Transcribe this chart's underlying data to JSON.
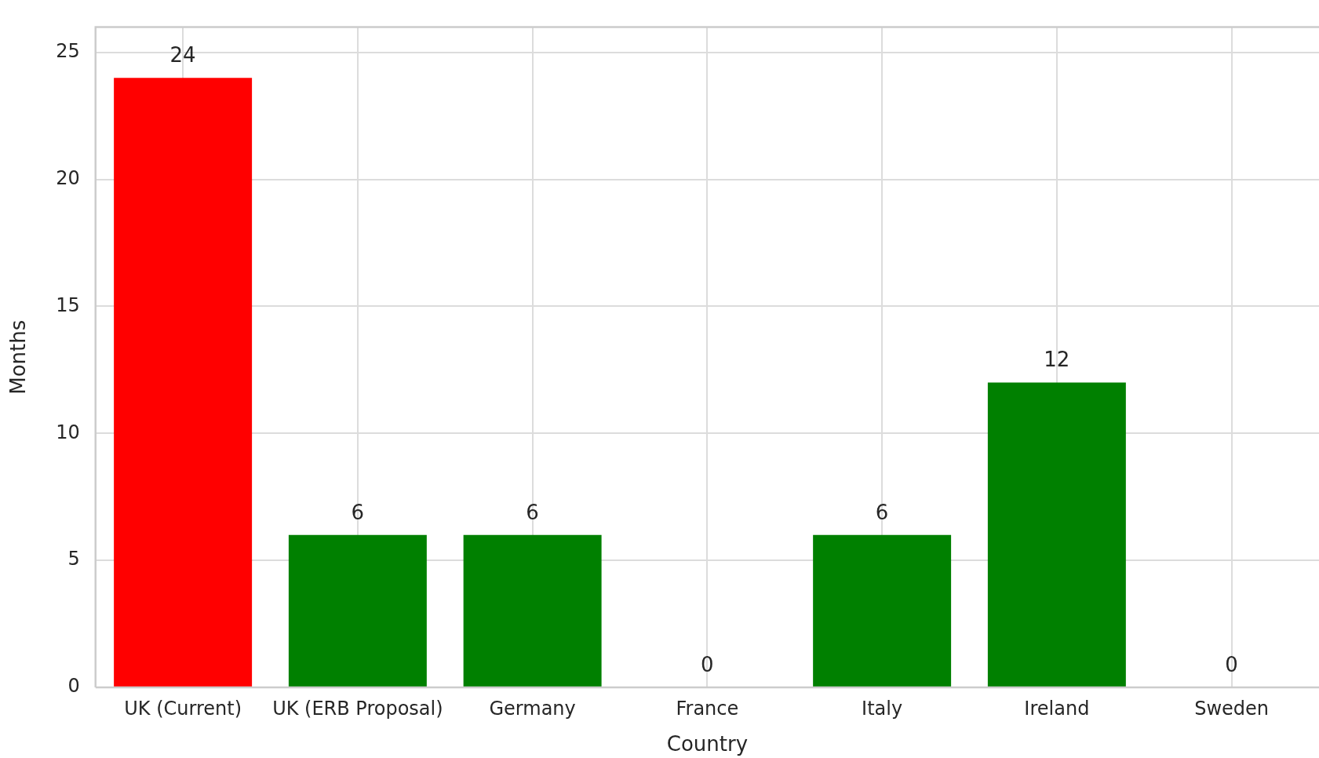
{
  "chart_data": {
    "type": "bar",
    "xlabel": "Country",
    "ylabel": "Months",
    "categories": [
      "UK (Current)",
      "UK (ERB Proposal)",
      "Germany",
      "France",
      "Italy",
      "Ireland",
      "Sweden"
    ],
    "values": [
      24,
      6,
      6,
      0,
      6,
      12,
      0
    ],
    "colors": [
      "#ff0000",
      "#008000",
      "#008000",
      "#008000",
      "#008000",
      "#008000",
      "#008000"
    ],
    "ylim": [
      0,
      26
    ],
    "yticks": [
      0,
      5,
      10,
      15,
      20,
      25
    ],
    "grid": true,
    "data_labels": true,
    "legend": false
  }
}
